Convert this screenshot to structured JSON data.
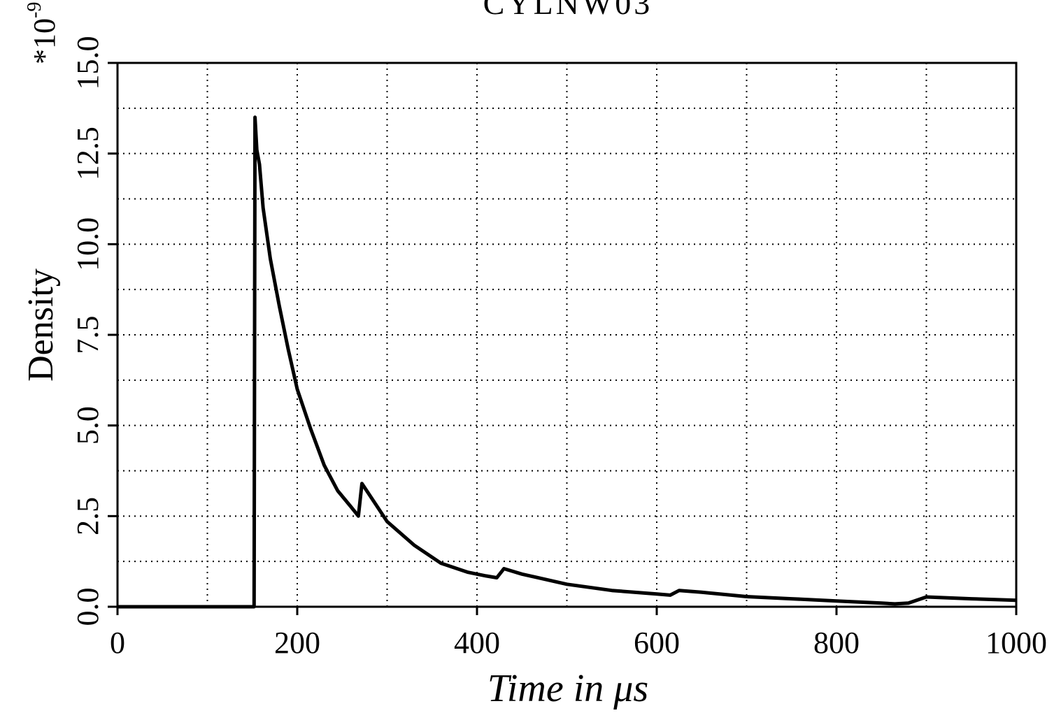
{
  "chart_data": {
    "type": "line",
    "title": "CYLNW03",
    "xlabel": "Time in μs",
    "ylabel": "Density",
    "y_multiplier": "*10",
    "y_multiplier_exponent": "-9",
    "xlim": [
      0,
      1000
    ],
    "ylim": [
      0,
      15
    ],
    "x_ticks": [
      0,
      200,
      400,
      600,
      800,
      1000
    ],
    "x_tick_labels": [
      "0",
      "200",
      "400",
      "600",
      "800",
      "1000"
    ],
    "y_ticks": [
      0,
      2.5,
      5,
      7.5,
      10,
      12.5,
      15
    ],
    "y_tick_labels": [
      "0.0",
      "2.5",
      "5.0",
      "7.5",
      "10.0",
      "12.5",
      "15.0"
    ],
    "grid": true,
    "series": [
      {
        "x": [
          0,
          100,
          152,
          153,
          155,
          158,
          162,
          170,
          180,
          190,
          200,
          215,
          230,
          245,
          260,
          268,
          272,
          280,
          300,
          330,
          360,
          390,
          410,
          422,
          430,
          450,
          500,
          550,
          600,
          615,
          625,
          650,
          700,
          750,
          800,
          850,
          865,
          880,
          900,
          950,
          1000
        ],
        "y": [
          0,
          0,
          0,
          13.5,
          12.6,
          12.2,
          11.0,
          9.6,
          8.3,
          7.1,
          6.0,
          4.9,
          3.9,
          3.2,
          2.75,
          2.5,
          3.4,
          3.1,
          2.35,
          1.7,
          1.2,
          0.95,
          0.85,
          0.8,
          1.05,
          0.9,
          0.62,
          0.45,
          0.35,
          0.32,
          0.45,
          0.4,
          0.28,
          0.22,
          0.16,
          0.1,
          0.08,
          0.1,
          0.27,
          0.22,
          0.18
        ]
      }
    ]
  }
}
